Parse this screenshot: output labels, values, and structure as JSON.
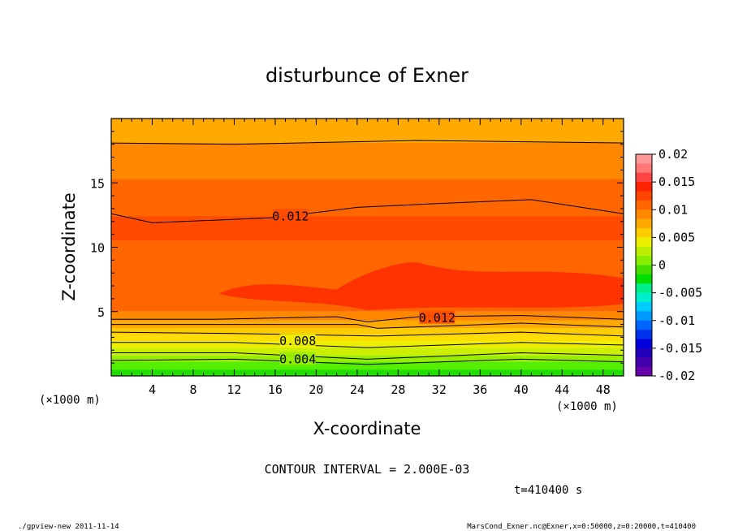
{
  "chart_data": {
    "type": "heatmap",
    "title": "disturbunce of Exner",
    "xlabel": "X-coordinate",
    "ylabel": "Z-coordinate",
    "x_unit": "(×1000 m)",
    "y_unit": "(×1000 m)",
    "xlim": [
      0,
      50
    ],
    "ylim": [
      0,
      20
    ],
    "x_ticks": [
      4,
      8,
      12,
      16,
      20,
      24,
      28,
      32,
      36,
      40,
      44,
      48
    ],
    "y_ticks": [
      5,
      10,
      15
    ],
    "colorbar": {
      "range": [
        -0.02,
        0.02
      ],
      "tick_labels": [
        "0.02",
        "0.015",
        "0.01",
        "0.005",
        "0",
        "-0.005",
        "-0.01",
        "-0.015",
        "-0.02"
      ]
    },
    "contour_interval": "CONTOUR INTERVAL = 2.000E-03",
    "contour_labels": [
      {
        "text": "0.012",
        "x": 17.5,
        "z": 12.4
      },
      {
        "text": "0.012",
        "x": 31.8,
        "z": 4.5
      },
      {
        "text": "0.008",
        "x": 18.2,
        "z": 2.7
      },
      {
        "text": "0.004",
        "x": 18.2,
        "z": 1.3
      }
    ],
    "time_label": "t=410400 s"
  },
  "footer": {
    "left": "./gpview-new   2011-11-14",
    "right": "MarsCond_Exner.nc@Exner,x=0:50000,z=0:20000,t=410400"
  },
  "colors": {
    "bands": [
      "#22dd00",
      "#55ee00",
      "#99ee00",
      "#ccee00",
      "#eeee00",
      "#ffdd00",
      "#ffcc00",
      "#ffaa00",
      "#ff8800",
      "#ff6600",
      "#ff4a00",
      "#ff3300"
    ],
    "cbar_top": [
      "#ff9999",
      "#ff6666",
      "#ff3300",
      "#ff6600"
    ],
    "cbar_bottom": [
      "#00dd00",
      "#00ee88",
      "#00ddee",
      "#0088ff",
      "#0044ee",
      "#0000cc",
      "#6600aa"
    ]
  }
}
